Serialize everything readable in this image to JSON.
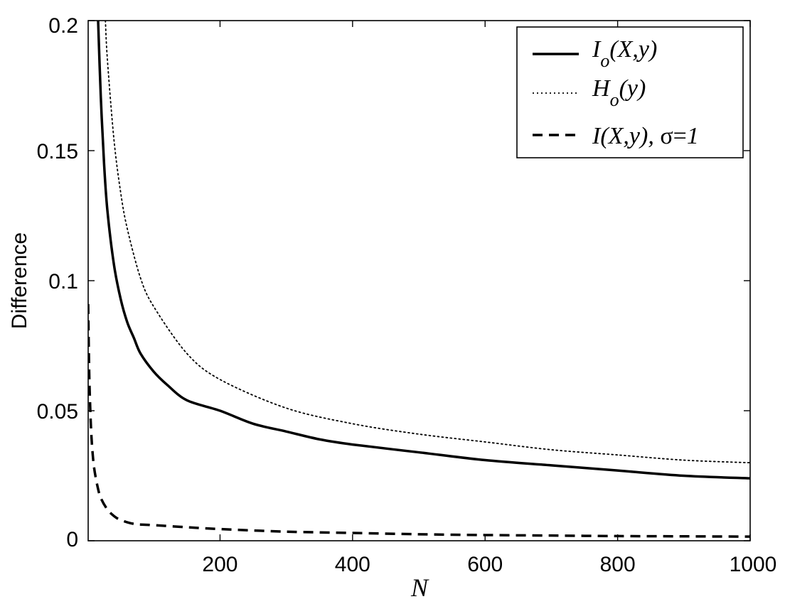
{
  "chart_data": {
    "type": "line",
    "xlabel": "N",
    "ylabel": "Difference",
    "xlim": [
      1,
      1000
    ],
    "ylim": [
      0,
      0.2
    ],
    "xticks": [
      200,
      400,
      600,
      800,
      1000
    ],
    "xtick_labels": [
      "200",
      "400",
      "600",
      "800",
      "1000"
    ],
    "yticks": [
      0,
      0.05,
      0.1,
      0.15,
      0.2
    ],
    "ytick_labels": [
      "0",
      "0.05",
      "0.1",
      "0.15",
      "0.2"
    ],
    "grid": false,
    "legend_position": "top-right",
    "series": [
      {
        "name": "I_o(X,y)",
        "style": "solid",
        "color": "#000000",
        "x": [
          16,
          20,
          25,
          30,
          40,
          50,
          60,
          70,
          80,
          100,
          120,
          150,
          200,
          250,
          300,
          350,
          400,
          500,
          600,
          700,
          800,
          900,
          1000
        ],
        "y": [
          0.2,
          0.171,
          0.145,
          0.127,
          0.106,
          0.093,
          0.084,
          0.078,
          0.072,
          0.065,
          0.06,
          0.054,
          0.05,
          0.045,
          0.042,
          0.039,
          0.037,
          0.034,
          0.031,
          0.029,
          0.027,
          0.025,
          0.024
        ]
      },
      {
        "name": "H_o(y)",
        "style": "dotted",
        "color": "#000000",
        "x": [
          27,
          30,
          40,
          50,
          60,
          80,
          100,
          150,
          200,
          300,
          400,
          500,
          600,
          700,
          800,
          900,
          1000
        ],
        "y": [
          0.2,
          0.185,
          0.154,
          0.134,
          0.12,
          0.101,
          0.09,
          0.072,
          0.062,
          0.051,
          0.045,
          0.041,
          0.038,
          0.035,
          0.033,
          0.031,
          0.03
        ]
      },
      {
        "name": "I(X,y), σ=1",
        "style": "dashed",
        "color": "#000000",
        "x": [
          1,
          2,
          3,
          5,
          7,
          10,
          15,
          20,
          30,
          40,
          50,
          70,
          100,
          150,
          200,
          300,
          400,
          500,
          600,
          700,
          800,
          900,
          1000
        ],
        "y": [
          0.091,
          0.073,
          0.06,
          0.045,
          0.036,
          0.028,
          0.021,
          0.0165,
          0.012,
          0.0095,
          0.008,
          0.0065,
          0.006,
          0.0052,
          0.0045,
          0.0035,
          0.003,
          0.0025,
          0.0022,
          0.002,
          0.0018,
          0.0017,
          0.0016
        ]
      }
    ]
  },
  "legend": {
    "items": [
      {
        "main": "I",
        "sub": "o",
        "rest": "(X,y)"
      },
      {
        "main": "H",
        "sub": "o",
        "rest": "(y)"
      },
      {
        "main": "I(X,y), ",
        "sigma": "σ=",
        "rest": "1"
      }
    ]
  }
}
